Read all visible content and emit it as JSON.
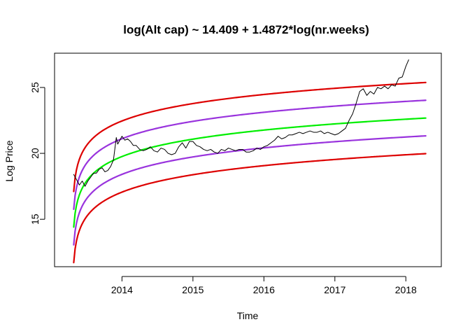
{
  "chart_data": {
    "type": "line",
    "title": "log(Alt cap) ~ 14.409 + 1.4872*log(nr.weeks)",
    "xlabel": "Time",
    "ylabel": "Log Price",
    "xlim": [
      2013.05,
      2018.5
    ],
    "ylim": [
      11.4,
      27.6
    ],
    "x_ticks": [
      2014,
      2015,
      2016,
      2017,
      2018
    ],
    "x_tick_labels": [
      "2014",
      "2015",
      "2016",
      "2017",
      "2018"
    ],
    "y_ticks": [
      15,
      20,
      25
    ],
    "y_tick_labels": [
      "15",
      "20",
      "25"
    ],
    "grid": false,
    "legend": "none",
    "model": {
      "intercept": 14.409,
      "slope": 1.4872,
      "start": 2013.32,
      "end": 2018.28,
      "weeks_per_year": 52.18
    },
    "series": [
      {
        "role": "band",
        "offset": 2.7,
        "color": "#dd0000",
        "width": 2.2
      },
      {
        "role": "band",
        "offset": 1.35,
        "color": "#9933dd",
        "width": 2.2
      },
      {
        "role": "fit",
        "offset": 0,
        "color": "#00ee00",
        "width": 2.2
      },
      {
        "role": "band",
        "offset": -1.35,
        "color": "#9933dd",
        "width": 2.2
      },
      {
        "role": "band",
        "offset": -2.7,
        "color": "#dd0000",
        "width": 2.2
      },
      {
        "role": "price",
        "color": "#000000",
        "width": 1,
        "x": [
          2013.32,
          2013.36,
          2013.4,
          2013.44,
          2013.48,
          2013.52,
          2013.56,
          2013.6,
          2013.64,
          2013.68,
          2013.72,
          2013.76,
          2013.8,
          2013.84,
          2013.88,
          2013.92,
          2013.94,
          2013.96,
          2014.0,
          2014.04,
          2014.08,
          2014.12,
          2014.16,
          2014.2,
          2014.25,
          2014.3,
          2014.35,
          2014.4,
          2014.45,
          2014.5,
          2014.55,
          2014.6,
          2014.65,
          2014.7,
          2014.75,
          2014.8,
          2014.85,
          2014.9,
          2014.95,
          2015.0,
          2015.05,
          2015.1,
          2015.15,
          2015.2,
          2015.25,
          2015.3,
          2015.35,
          2015.4,
          2015.45,
          2015.5,
          2015.55,
          2015.6,
          2015.65,
          2015.7,
          2015.75,
          2015.8,
          2015.85,
          2015.9,
          2015.95,
          2016.0,
          2016.05,
          2016.1,
          2016.15,
          2016.2,
          2016.25,
          2016.3,
          2016.35,
          2016.4,
          2016.45,
          2016.5,
          2016.55,
          2016.6,
          2016.65,
          2016.7,
          2016.75,
          2016.8,
          2016.85,
          2016.9,
          2016.95,
          2017.0,
          2017.05,
          2017.1,
          2017.15,
          2017.2,
          2017.25,
          2017.3,
          2017.35,
          2017.4,
          2017.45,
          2017.5,
          2017.55,
          2017.6,
          2017.65,
          2017.7,
          2017.75,
          2017.8,
          2017.85,
          2017.9,
          2017.95,
          2018.0,
          2018.04
        ],
        "y": [
          18.4,
          18.0,
          17.6,
          17.9,
          17.5,
          17.9,
          18.2,
          18.5,
          18.5,
          18.8,
          18.9,
          18.6,
          18.7,
          19.0,
          19.5,
          21.2,
          20.7,
          20.9,
          21.3,
          21.0,
          21.1,
          20.9,
          20.6,
          20.6,
          20.3,
          20.2,
          20.3,
          20.5,
          20.2,
          20.1,
          20.4,
          20.3,
          20.0,
          19.9,
          20.0,
          20.5,
          20.8,
          20.4,
          20.9,
          20.9,
          20.6,
          20.5,
          20.3,
          20.2,
          20.3,
          20.1,
          20.0,
          20.3,
          20.2,
          20.4,
          20.3,
          20.2,
          20.3,
          20.3,
          20.1,
          20.1,
          20.2,
          20.4,
          20.3,
          20.5,
          20.6,
          20.8,
          21.0,
          21.3,
          21.1,
          21.2,
          21.4,
          21.4,
          21.5,
          21.6,
          21.5,
          21.6,
          21.7,
          21.6,
          21.6,
          21.7,
          21.5,
          21.6,
          21.5,
          21.4,
          21.5,
          21.7,
          21.9,
          22.5,
          23.0,
          23.8,
          24.7,
          24.9,
          24.4,
          24.7,
          24.5,
          25.0,
          24.9,
          25.1,
          24.9,
          25.2,
          25.1,
          25.7,
          25.8,
          26.6,
          27.1
        ]
      }
    ]
  }
}
